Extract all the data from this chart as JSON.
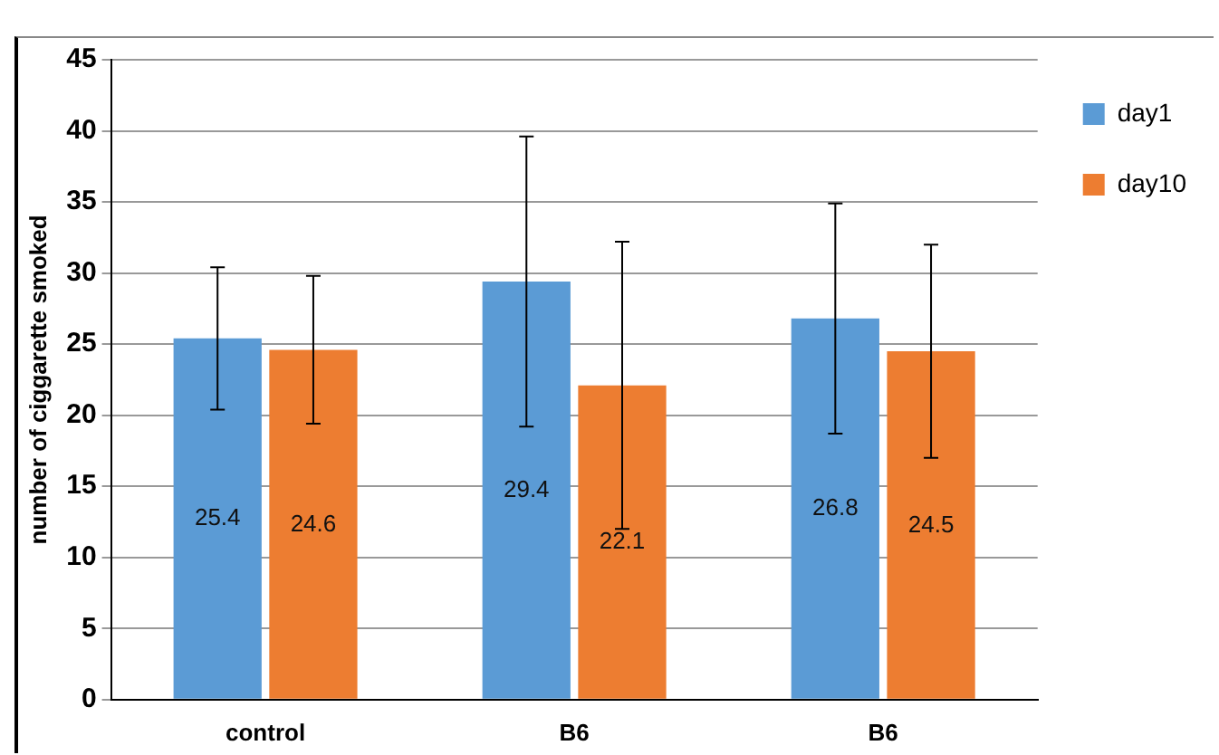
{
  "chart_data": {
    "type": "bar",
    "ylabel": "number of ciggarette smoked",
    "categories": [
      "control",
      "B6",
      "B6"
    ],
    "series": [
      {
        "name": "day1",
        "color": "#5b9bd5",
        "values": [
          25.4,
          29.4,
          26.8
        ],
        "errors": [
          5,
          10.2,
          8.1
        ]
      },
      {
        "name": "day10",
        "color": "#ed7d31",
        "values": [
          24.6,
          22.1,
          24.5
        ],
        "errors": [
          5.2,
          10.1,
          7.5
        ]
      }
    ],
    "ylim": [
      0,
      45
    ],
    "yticks": [
      0,
      5,
      10,
      15,
      20,
      25,
      30,
      35,
      40,
      45
    ],
    "grid": "y",
    "legend": "top right",
    "data_labels": true
  }
}
